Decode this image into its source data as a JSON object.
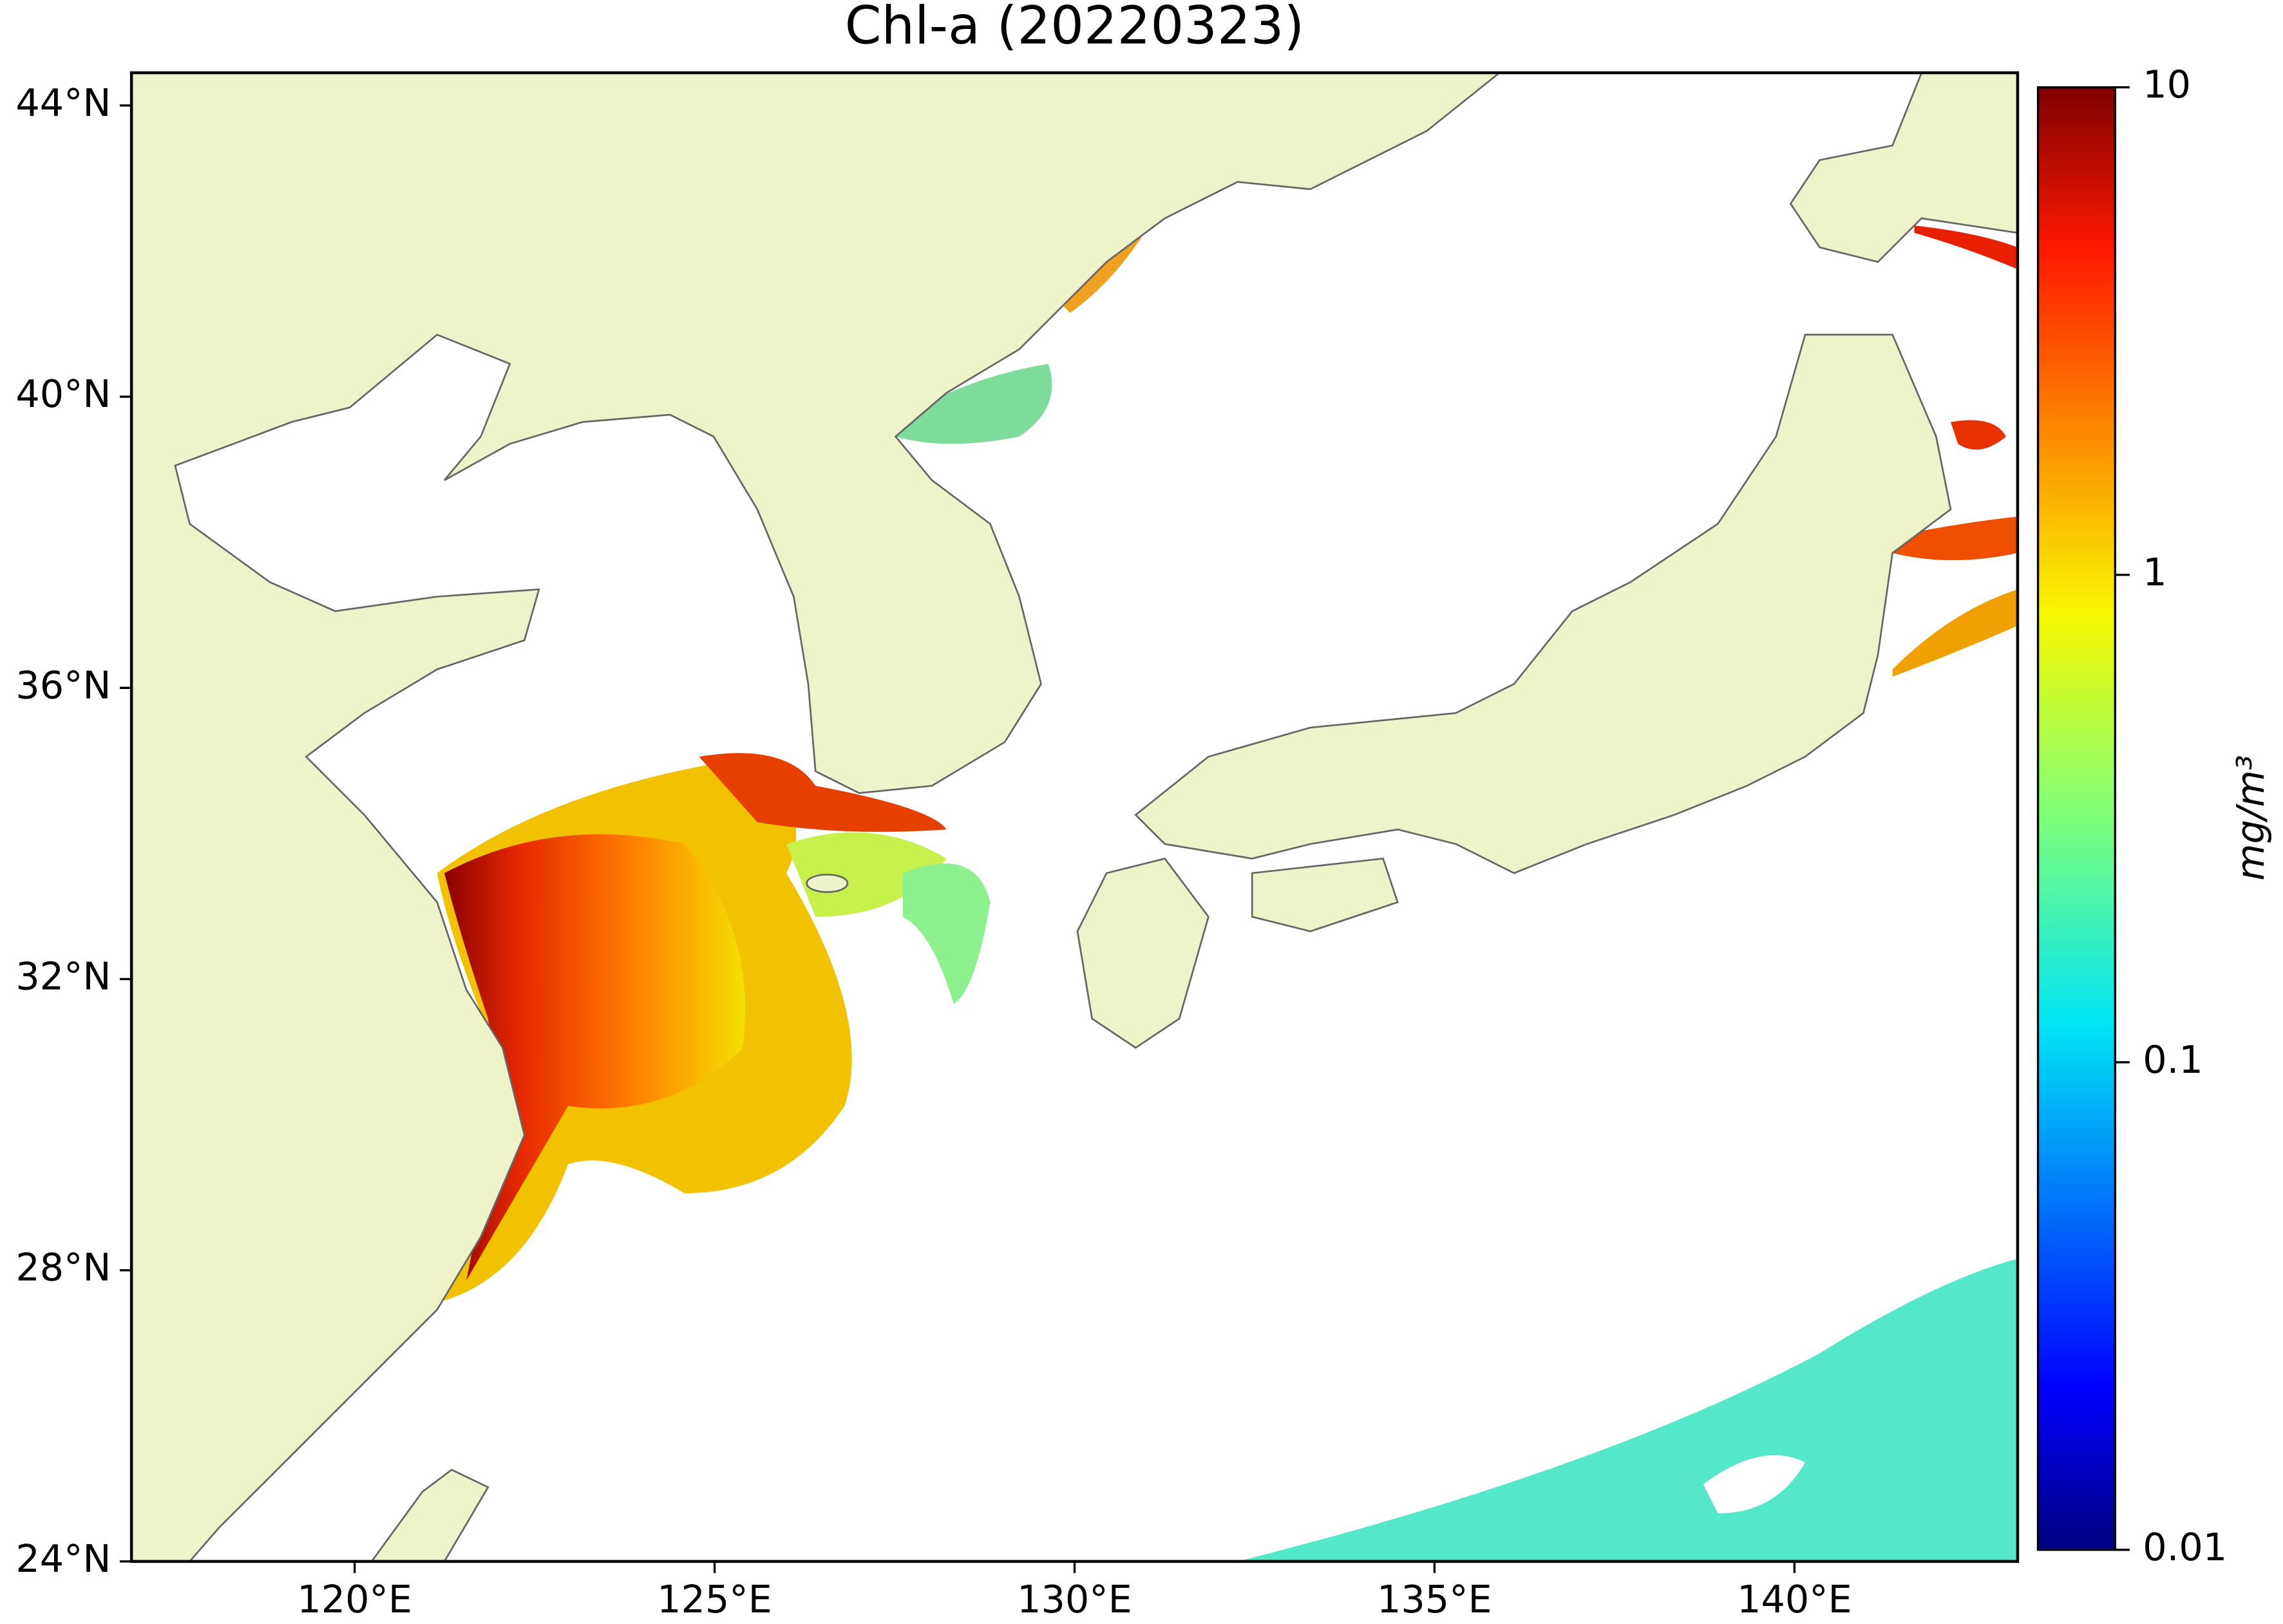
{
  "chart_data": {
    "type": "map",
    "title": "Chl-a (20220323)",
    "xlim": [
      116.9,
      143.1
    ],
    "ylim": [
      24,
      44.45
    ],
    "xticks": [
      {
        "value": 120,
        "label": "120°E"
      },
      {
        "value": 125,
        "label": "125°E"
      },
      {
        "value": 130,
        "label": "130°E"
      },
      {
        "value": 135,
        "label": "135°E"
      },
      {
        "value": 140,
        "label": "140°E"
      }
    ],
    "yticks": [
      {
        "value": 24,
        "label": "24°N"
      },
      {
        "value": 28,
        "label": "28°N"
      },
      {
        "value": 32,
        "label": "32°N"
      },
      {
        "value": 36,
        "label": "36°N"
      },
      {
        "value": 40,
        "label": "40°N"
      },
      {
        "value": 44,
        "label": "44°N"
      }
    ],
    "colorbar": {
      "label": "mg/m³",
      "lim": [
        0.01,
        10
      ],
      "log_scale": true,
      "ticks": [
        0.01,
        0.1,
        1,
        10
      ]
    }
  }
}
